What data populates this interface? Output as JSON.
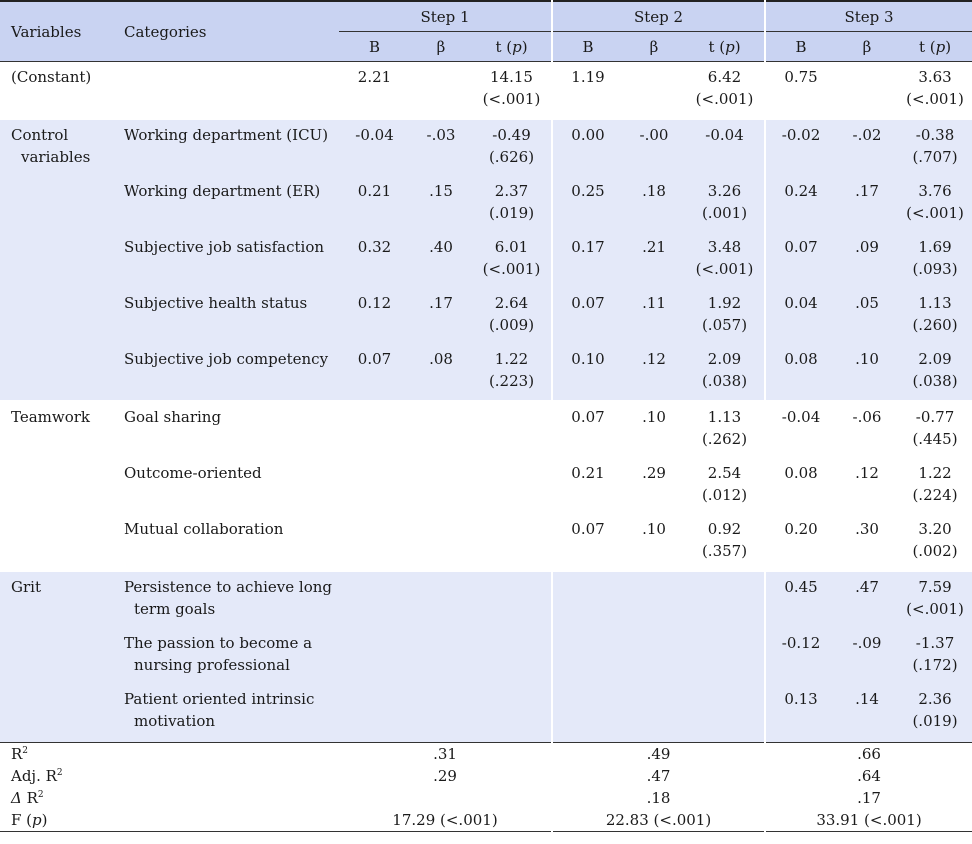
{
  "header": {
    "variables": "Variables",
    "categories": "Categories",
    "steps": [
      "Step 1",
      "Step 2",
      "Step 3"
    ],
    "sub": [
      "B",
      "β",
      "t (p)"
    ]
  },
  "rows": [
    {
      "var": "(Constant)",
      "cat": "",
      "s1": [
        "2.21",
        "",
        "14.15",
        "(<.001)"
      ],
      "s2": [
        "1.19",
        "",
        "6.42",
        "(<.001)"
      ],
      "s3": [
        "0.75",
        "",
        "3.63",
        "(<.001)"
      ]
    },
    {
      "var": "Control",
      "var2": "variables",
      "cat": "Working department (ICU)",
      "s1": [
        "-0.04",
        "-.03",
        "-0.49",
        "(.626)"
      ],
      "s2": [
        "0.00",
        "-.00",
        "-0.04",
        ""
      ],
      "s3": [
        "-0.02",
        "-.02",
        "-0.38",
        "(.707)"
      ]
    },
    {
      "var": "",
      "cat": "Working department (ER)",
      "s1": [
        "0.21",
        ".15",
        "2.37",
        "(.019)"
      ],
      "s2": [
        "0.25",
        ".18",
        "3.26",
        "(.001)"
      ],
      "s3": [
        "0.24",
        ".17",
        "3.76",
        "(<.001)"
      ]
    },
    {
      "var": "",
      "cat": "Subjective job satisfaction",
      "s1": [
        "0.32",
        ".40",
        "6.01",
        "(<.001)"
      ],
      "s2": [
        "0.17",
        ".21",
        "3.48",
        "(<.001)"
      ],
      "s3": [
        "0.07",
        ".09",
        "1.69",
        "(.093)"
      ]
    },
    {
      "var": "",
      "cat": "Subjective health status",
      "s1": [
        "0.12",
        ".17",
        "2.64",
        "(.009)"
      ],
      "s2": [
        "0.07",
        ".11",
        "1.92",
        "(.057)"
      ],
      "s3": [
        "0.04",
        ".05",
        "1.13",
        "(.260)"
      ]
    },
    {
      "var": "",
      "cat": "Subjective job competency",
      "s1": [
        "0.07",
        ".08",
        "1.22",
        "(.223)"
      ],
      "s2": [
        "0.10",
        ".12",
        "2.09",
        "(.038)"
      ],
      "s3": [
        "0.08",
        ".10",
        "2.09",
        "(.038)"
      ]
    },
    {
      "var": "Teamwork",
      "cat": "Goal sharing",
      "s1": [
        "",
        "",
        "",
        ""
      ],
      "s2": [
        "0.07",
        ".10",
        "1.13",
        "(.262)"
      ],
      "s3": [
        "-0.04",
        "-.06",
        "-0.77",
        "(.445)"
      ]
    },
    {
      "var": "",
      "cat": "Outcome-oriented",
      "s1": [
        "",
        "",
        "",
        ""
      ],
      "s2": [
        "0.21",
        ".29",
        "2.54",
        "(.012)"
      ],
      "s3": [
        "0.08",
        ".12",
        "1.22",
        "(.224)"
      ]
    },
    {
      "var": "",
      "cat": "Mutual collaboration",
      "s1": [
        "",
        "",
        "",
        ""
      ],
      "s2": [
        "0.07",
        ".10",
        "0.92",
        "(.357)"
      ],
      "s3": [
        "0.20",
        ".30",
        "3.20",
        "(.002)"
      ]
    },
    {
      "var": "Grit",
      "cat": "Persistence to achieve long",
      "cat2": "term goals",
      "s1": [
        "",
        "",
        "",
        ""
      ],
      "s2": [
        "",
        "",
        "",
        ""
      ],
      "s3": [
        "0.45",
        ".47",
        "7.59",
        "(<.001)"
      ]
    },
    {
      "var": "",
      "cat": "The passion to become a",
      "cat2": "nursing professional",
      "s1": [
        "",
        "",
        "",
        ""
      ],
      "s2": [
        "",
        "",
        "",
        ""
      ],
      "s3": [
        "-0.12",
        "-.09",
        "-1.37",
        "(.172)"
      ]
    },
    {
      "var": "",
      "cat": "Patient oriented intrinsic",
      "cat2": "motivation",
      "s1": [
        "",
        "",
        "",
        ""
      ],
      "s2": [
        "",
        "",
        "",
        ""
      ],
      "s3": [
        "0.13",
        ".14",
        "2.36",
        "(.019)"
      ]
    }
  ],
  "stats": [
    {
      "label": "R",
      "sup": "2",
      "prefix": "",
      "s1": ".31",
      "s2": ".49",
      "s3": ".66"
    },
    {
      "label": "Adj. R",
      "sup": "2",
      "prefix": "",
      "s1": ".29",
      "s2": ".47",
      "s3": ".64"
    },
    {
      "label": " R",
      "sup": "2",
      "prefix": "Δ",
      "s1": "",
      "s2": ".18",
      "s3": ".17"
    },
    {
      "label": "F (p)",
      "sup": "",
      "prefix": "",
      "s1": "17.29 (<.001)",
      "s2": "22.83 (<.001)",
      "s3": "33.91 (<.001)"
    }
  ]
}
